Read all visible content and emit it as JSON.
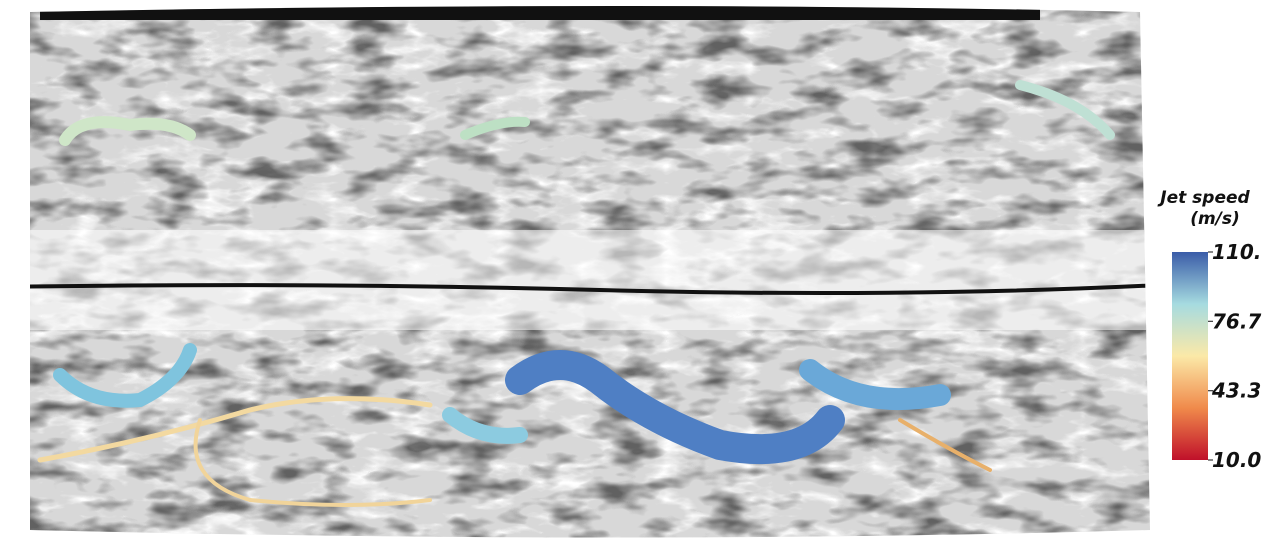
{
  "colorbar": {
    "title": [
      "Jet speed",
      "(m/s)"
    ],
    "range": [
      10,
      110
    ],
    "ticks": [
      {
        "value": 110,
        "label": "110."
      },
      76.7,
      43.3,
      {
        "value": 10,
        "label": "10.0"
      }
    ],
    "colors": [
      "#c0102a",
      "#f08a4b",
      "#fbe9a8",
      "#a6dbe0",
      "#3a5ca8"
    ]
  }
}
